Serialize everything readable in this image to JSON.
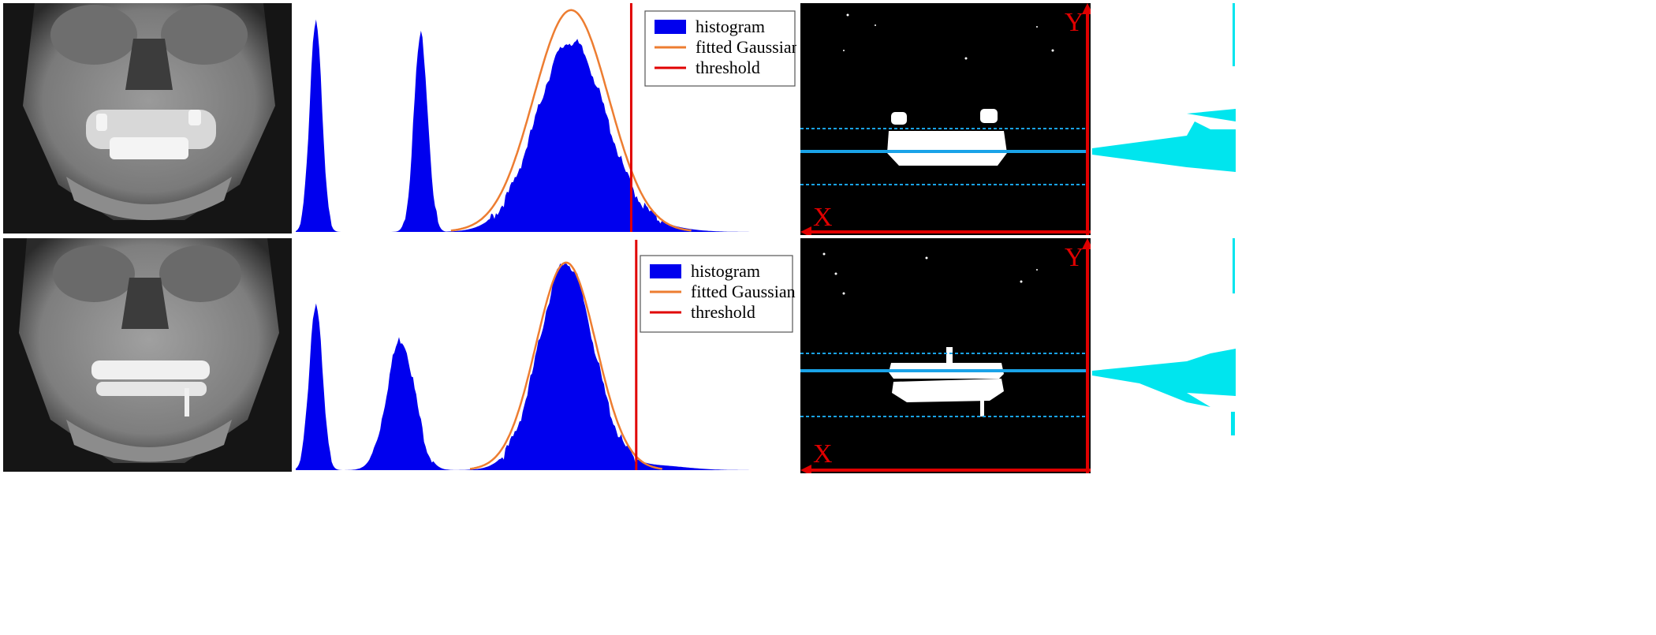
{
  "legend": {
    "histogram": "histogram",
    "fitted": "fitted Gaussian",
    "threshold": "threshold"
  },
  "axis_labels": {
    "x": "X",
    "y": "Y"
  },
  "colors": {
    "histogram": "#0000ee",
    "gaussian": "#ed7d31",
    "threshold": "#e00000",
    "projection": "#00e5ee",
    "guide": "#1aa3e8"
  },
  "chart_data": [
    {
      "type": "area",
      "row": "top",
      "title": "",
      "legend": [
        "histogram",
        "fitted Gaussian",
        "threshold"
      ],
      "histogram_peaks": [
        {
          "center": 0.04,
          "height": 0.95,
          "width": 0.012
        },
        {
          "center": 0.25,
          "height": 0.88,
          "width": 0.014
        },
        {
          "center": 0.55,
          "height": 0.85,
          "width": 0.07
        }
      ],
      "gaussian": {
        "mean": 0.55,
        "sd": 0.075,
        "peak": 0.99
      },
      "threshold": 0.67
    },
    {
      "type": "area",
      "row": "bottom",
      "title": "",
      "legend": [
        "histogram",
        "fitted Gaussian",
        "threshold"
      ],
      "histogram_peaks": [
        {
          "center": 0.04,
          "height": 0.74,
          "width": 0.013
        },
        {
          "center": 0.21,
          "height": 0.58,
          "width": 0.028
        },
        {
          "center": 0.54,
          "height": 0.92,
          "width": 0.055
        }
      ],
      "gaussian": {
        "mean": 0.54,
        "sd": 0.06,
        "peak": 0.92
      },
      "threshold": 0.68
    }
  ]
}
